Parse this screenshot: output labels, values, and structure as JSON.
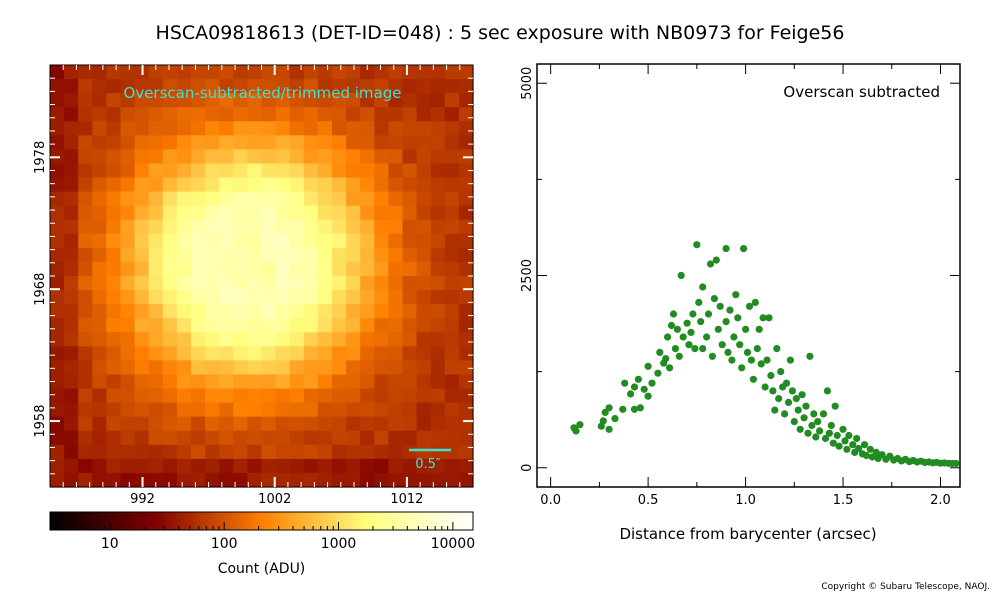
{
  "title": "HSCA09818613 (DET-ID=048) :  5 sec exposure with NB0973 for Feige56",
  "copyright": "Copyright © Subaru Telescope, NAOJ.",
  "colors": {
    "points": "#228b22",
    "overlay_text": "#40e0d0"
  },
  "chart_data": [
    {
      "type": "heatmap",
      "overlay_label": "Overscan-subtracted/trimmed image",
      "scale_bar_label": "0.5″",
      "x_ticks": [
        "992",
        "1002",
        "1012"
      ],
      "y_ticks": [
        "1978",
        "1968",
        "1958"
      ],
      "xlim": [
        985,
        1017
      ],
      "ylim": [
        1953,
        1985
      ],
      "colormap": "afmhot",
      "colorbar": {
        "label": "Count (ADU)",
        "scale": "log",
        "range": [
          3,
          15000
        ],
        "tick_labels": [
          "10",
          "100",
          "1000",
          "10000"
        ]
      }
    },
    {
      "type": "scatter",
      "annotation": "Overscan subtracted",
      "xlabel": "Distance from barycenter (arcsec)",
      "ylabel": "",
      "xlim": [
        -0.07,
        2.1
      ],
      "ylim": [
        -250,
        5250
      ],
      "x_ticks": [
        "0.0",
        "0.5",
        "1.0",
        "1.5",
        "2.0"
      ],
      "y_ticks": [
        "0",
        "2500",
        "5000"
      ],
      "points": [
        [
          0.12,
          520
        ],
        [
          0.13,
          480
        ],
        [
          0.15,
          560
        ],
        [
          0.26,
          540
        ],
        [
          0.27,
          610
        ],
        [
          0.28,
          720
        ],
        [
          0.3,
          780
        ],
        [
          0.3,
          500
        ],
        [
          0.33,
          640
        ],
        [
          0.37,
          760
        ],
        [
          0.38,
          1100
        ],
        [
          0.41,
          960
        ],
        [
          0.43,
          1050
        ],
        [
          0.43,
          760
        ],
        [
          0.45,
          1150
        ],
        [
          0.46,
          780
        ],
        [
          0.48,
          1020
        ],
        [
          0.5,
          930
        ],
        [
          0.5,
          1320
        ],
        [
          0.52,
          1100
        ],
        [
          0.55,
          1230
        ],
        [
          0.56,
          1500
        ],
        [
          0.58,
          1360
        ],
        [
          0.59,
          1420
        ],
        [
          0.6,
          1700
        ],
        [
          0.61,
          1300
        ],
        [
          0.62,
          1850
        ],
        [
          0.63,
          2000
        ],
        [
          0.64,
          1550
        ],
        [
          0.65,
          1800
        ],
        [
          0.66,
          1450
        ],
        [
          0.67,
          2500
        ],
        [
          0.68,
          1700
        ],
        [
          0.7,
          1880
        ],
        [
          0.71,
          1600
        ],
        [
          0.72,
          1760
        ],
        [
          0.73,
          2000
        ],
        [
          0.74,
          1550
        ],
        [
          0.75,
          2900
        ],
        [
          0.76,
          2150
        ],
        [
          0.77,
          1900
        ],
        [
          0.78,
          1550
        ],
        [
          0.78,
          2350
        ],
        [
          0.8,
          1700
        ],
        [
          0.81,
          2000
        ],
        [
          0.82,
          2650
        ],
        [
          0.83,
          1450
        ],
        [
          0.84,
          2200
        ],
        [
          0.85,
          2700
        ],
        [
          0.86,
          1800
        ],
        [
          0.87,
          2100
        ],
        [
          0.88,
          1600
        ],
        [
          0.9,
          2850
        ],
        [
          0.9,
          1900
        ],
        [
          0.91,
          1500
        ],
        [
          0.92,
          2050
        ],
        [
          0.93,
          1400
        ],
        [
          0.94,
          1700
        ],
        [
          0.95,
          2250
        ],
        [
          0.96,
          1950
        ],
        [
          0.97,
          1600
        ],
        [
          0.98,
          1300
        ],
        [
          0.99,
          2850
        ],
        [
          1.0,
          1800
        ],
        [
          1.01,
          1500
        ],
        [
          1.02,
          2100
        ],
        [
          1.03,
          1400
        ],
        [
          1.04,
          1150
        ],
        [
          1.05,
          2150
        ],
        [
          1.06,
          1550
        ],
        [
          1.07,
          1800
        ],
        [
          1.08,
          1350
        ],
        [
          1.09,
          1950
        ],
        [
          1.1,
          1050
        ],
        [
          1.11,
          1400
        ],
        [
          1.12,
          1950
        ],
        [
          1.13,
          1200
        ],
        [
          1.14,
          1000
        ],
        [
          1.15,
          750
        ],
        [
          1.16,
          1550
        ],
        [
          1.17,
          900
        ],
        [
          1.18,
          1250
        ],
        [
          1.19,
          1050
        ],
        [
          1.2,
          700
        ],
        [
          1.21,
          1100
        ],
        [
          1.22,
          850
        ],
        [
          1.23,
          1400
        ],
        [
          1.24,
          1000
        ],
        [
          1.25,
          600
        ],
        [
          1.26,
          900
        ],
        [
          1.27,
          750
        ],
        [
          1.28,
          500
        ],
        [
          1.29,
          950
        ],
        [
          1.3,
          650
        ],
        [
          1.31,
          800
        ],
        [
          1.32,
          450
        ],
        [
          1.33,
          1450
        ],
        [
          1.34,
          550
        ],
        [
          1.35,
          700
        ],
        [
          1.36,
          400
        ],
        [
          1.37,
          600
        ],
        [
          1.38,
          480
        ],
        [
          1.4,
          700
        ],
        [
          1.41,
          380
        ],
        [
          1.42,
          1000
        ],
        [
          1.43,
          450
        ],
        [
          1.44,
          550
        ],
        [
          1.45,
          320
        ],
        [
          1.46,
          800
        ],
        [
          1.47,
          420
        ],
        [
          1.48,
          280
        ],
        [
          1.5,
          500
        ],
        [
          1.51,
          350
        ],
        [
          1.52,
          240
        ],
        [
          1.53,
          420
        ],
        [
          1.55,
          300
        ],
        [
          1.56,
          200
        ],
        [
          1.57,
          380
        ],
        [
          1.58,
          250
        ],
        [
          1.6,
          180
        ],
        [
          1.61,
          300
        ],
        [
          1.62,
          160
        ],
        [
          1.64,
          240
        ],
        [
          1.65,
          140
        ],
        [
          1.67,
          200
        ],
        [
          1.68,
          120
        ],
        [
          1.7,
          170
        ],
        [
          1.72,
          110
        ],
        [
          1.74,
          150
        ],
        [
          1.76,
          100
        ],
        [
          1.78,
          120
        ],
        [
          1.8,
          90
        ],
        [
          1.82,
          110
        ],
        [
          1.84,
          80
        ],
        [
          1.86,
          95
        ],
        [
          1.88,
          75
        ],
        [
          1.9,
          85
        ],
        [
          1.92,
          70
        ],
        [
          1.94,
          75
        ],
        [
          1.96,
          65
        ],
        [
          1.98,
          70
        ],
        [
          2.0,
          60
        ],
        [
          2.02,
          62
        ],
        [
          2.04,
          58
        ],
        [
          2.06,
          55
        ],
        [
          2.08,
          55
        ]
      ]
    }
  ]
}
